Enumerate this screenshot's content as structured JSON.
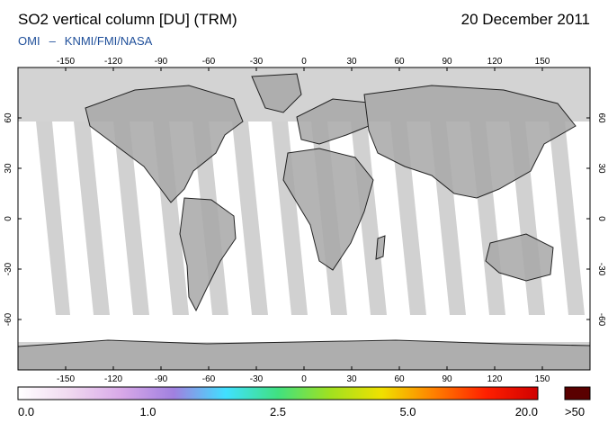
{
  "title": "SO2 vertical column [DU] (TRM)",
  "date": "20 December 2011",
  "credit": {
    "left": "OMI",
    "dash": "–",
    "right": "KNMI/FMI/NASA"
  },
  "map": {
    "lon_ticks": [
      "-150",
      "-120",
      "-90",
      "-60",
      "-30",
      "0",
      "30",
      "60",
      "90",
      "120",
      "150"
    ],
    "lat_ticks": [
      "60",
      "30",
      "0",
      "-30",
      "-60"
    ],
    "colors": {
      "no_data": "#d3d3d3",
      "land": "#a8a8a8",
      "swath_gap": "#cfcfcf",
      "coast": "#000000"
    }
  },
  "colorbar": {
    "labels": [
      "0.0",
      "1.0",
      "2.5",
      "5.0",
      "20.0"
    ],
    "over_label": ">50",
    "over_color": "#5a0000",
    "stops": [
      "#ffffff",
      "#f0d8f0",
      "#d8a8e8",
      "#a080e0",
      "#40e0ff",
      "#40e080",
      "#a0e020",
      "#f0e000",
      "#ff8000",
      "#ff2000",
      "#d00000"
    ]
  }
}
